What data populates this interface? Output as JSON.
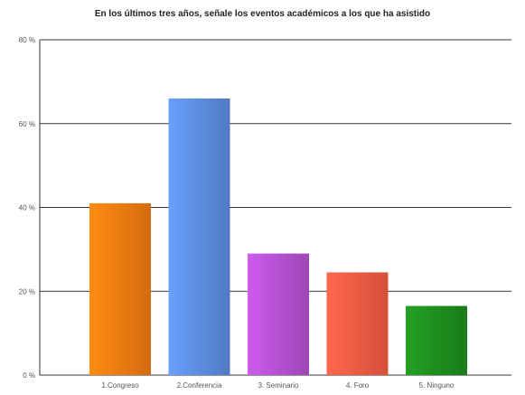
{
  "chart_data": {
    "type": "bar",
    "title": "En los últimos tres años, señale los eventos académicos a los que ha asistido",
    "categories": [
      "1.Congreso",
      "2.Conferencia",
      "3. Seminario",
      "4. Foro",
      "5. Ninguno"
    ],
    "values": [
      41,
      66,
      29,
      24.5,
      16.5
    ],
    "value_unit": "%",
    "ylim": [
      0,
      80
    ],
    "yticks": [
      0,
      20,
      40,
      60,
      80
    ],
    "ytick_labels": [
      "0 %",
      "20 %",
      "40 %",
      "60 %",
      "80 %"
    ],
    "grid": true,
    "legend": "none",
    "colors": [
      "#f07a10",
      "#5b8bdc",
      "#b24fcf",
      "#f15a43",
      "#1e8c1e"
    ],
    "axis_color": "#333333",
    "grid_color": "#333333"
  }
}
